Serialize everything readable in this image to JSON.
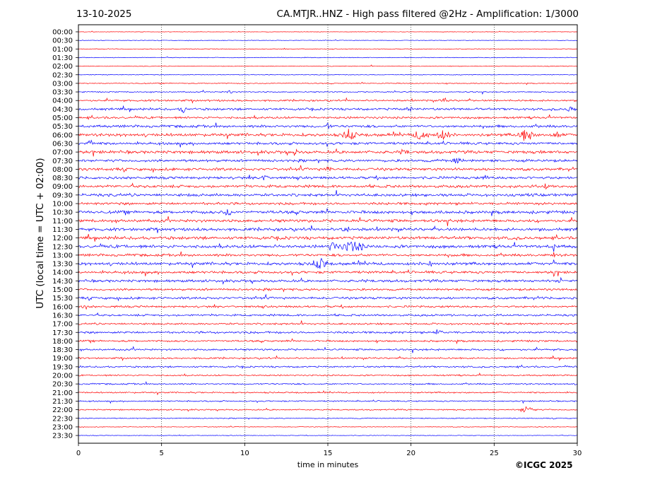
{
  "header": {
    "date": "13-10-2025",
    "title": "CA.MTJR..HNZ - High pass filtered @2Hz - Amplification: 1/3000"
  },
  "footer": {
    "copyright": "©ICGC 2025"
  },
  "colors": {
    "red": "#ff0000",
    "blue": "#0000ff",
    "grid": "#000000"
  },
  "chart_data": {
    "type": "line",
    "xlabel": "time in minutes",
    "ylabel": "UTC (local time = UTC + 02:00)",
    "xlim": [
      0,
      30
    ],
    "xticks": [
      0,
      5,
      10,
      15,
      20,
      25,
      30
    ],
    "xgrid": "dotted vertical lines at 5, 10, 15, 20, 25",
    "traces": [
      {
        "label": "00:00",
        "color": "red"
      },
      {
        "label": "00:30",
        "color": "blue"
      },
      {
        "label": "01:00",
        "color": "red"
      },
      {
        "label": "01:30",
        "color": "blue"
      },
      {
        "label": "02:00",
        "color": "red"
      },
      {
        "label": "02:30",
        "color": "blue"
      },
      {
        "label": "03:00",
        "color": "red"
      },
      {
        "label": "03:30",
        "color": "blue"
      },
      {
        "label": "04:00",
        "color": "red"
      },
      {
        "label": "04:30",
        "color": "blue"
      },
      {
        "label": "05:00",
        "color": "red"
      },
      {
        "label": "05:30",
        "color": "blue"
      },
      {
        "label": "06:00",
        "color": "red"
      },
      {
        "label": "06:30",
        "color": "blue"
      },
      {
        "label": "07:00",
        "color": "red"
      },
      {
        "label": "07:30",
        "color": "blue"
      },
      {
        "label": "08:00",
        "color": "red"
      },
      {
        "label": "08:30",
        "color": "blue"
      },
      {
        "label": "09:00",
        "color": "red"
      },
      {
        "label": "09:30",
        "color": "blue"
      },
      {
        "label": "10:00",
        "color": "red"
      },
      {
        "label": "10:30",
        "color": "blue"
      },
      {
        "label": "11:00",
        "color": "red"
      },
      {
        "label": "11:30",
        "color": "blue"
      },
      {
        "label": "12:00",
        "color": "red"
      },
      {
        "label": "12:30",
        "color": "blue"
      },
      {
        "label": "13:00",
        "color": "red"
      },
      {
        "label": "13:30",
        "color": "blue"
      },
      {
        "label": "14:00",
        "color": "red"
      },
      {
        "label": "14:30",
        "color": "blue"
      },
      {
        "label": "15:00",
        "color": "red"
      },
      {
        "label": "15:30",
        "color": "blue"
      },
      {
        "label": "16:00",
        "color": "red"
      },
      {
        "label": "16:30",
        "color": "blue"
      },
      {
        "label": "17:00",
        "color": "red"
      },
      {
        "label": "17:30",
        "color": "blue"
      },
      {
        "label": "18:00",
        "color": "red"
      },
      {
        "label": "18:30",
        "color": "blue"
      },
      {
        "label": "19:00",
        "color": "red"
      },
      {
        "label": "19:30",
        "color": "blue"
      },
      {
        "label": "20:00",
        "color": "red"
      },
      {
        "label": "20:30",
        "color": "blue"
      },
      {
        "label": "21:00",
        "color": "red"
      },
      {
        "label": "21:30",
        "color": "blue"
      },
      {
        "label": "22:00",
        "color": "red"
      },
      {
        "label": "22:30",
        "color": "blue"
      },
      {
        "label": "23:00",
        "color": "red"
      },
      {
        "label": "23:30",
        "color": "blue"
      }
    ],
    "noise_levels": [
      0.25,
      0.3,
      0.35,
      0.4,
      0.35,
      0.4,
      0.5,
      0.6,
      1.0,
      1.2,
      1.2,
      1.4,
      1.6,
      1.4,
      1.6,
      1.4,
      1.5,
      1.4,
      1.5,
      1.5,
      1.4,
      1.6,
      1.6,
      1.6,
      1.6,
      1.7,
      1.4,
      1.6,
      1.4,
      1.4,
      1.2,
      1.3,
      1.1,
      1.1,
      1.0,
      1.2,
      1.0,
      1.0,
      0.9,
      0.9,
      0.8,
      0.8,
      0.8,
      0.7,
      0.7,
      0.5,
      0.35,
      0.3
    ],
    "events": [
      {
        "trace": "03:30",
        "minute": 9.1,
        "amplitude": 3,
        "duration": 0.2
      },
      {
        "trace": "04:00",
        "minute": 22.0,
        "amplitude": 3,
        "duration": 0.3
      },
      {
        "trace": "04:30",
        "minute": 6.3,
        "amplitude": 4,
        "duration": 0.3
      },
      {
        "trace": "04:30",
        "minute": 19.9,
        "amplitude": 5,
        "duration": 0.2
      },
      {
        "trace": "04:30",
        "minute": 29.6,
        "amplitude": 4,
        "duration": 0.3
      },
      {
        "trace": "05:30",
        "minute": 15.0,
        "amplitude": 4,
        "duration": 0.2
      },
      {
        "trace": "06:00",
        "minute": 16.3,
        "amplitude": 8,
        "duration": 0.5
      },
      {
        "trace": "06:00",
        "minute": 20.6,
        "amplitude": 6,
        "duration": 0.6
      },
      {
        "trace": "06:00",
        "minute": 21.9,
        "amplitude": 6,
        "duration": 0.6
      },
      {
        "trace": "06:00",
        "minute": 26.9,
        "amplitude": 9,
        "duration": 0.6
      },
      {
        "trace": "06:00",
        "minute": 28.8,
        "amplitude": 5,
        "duration": 0.3
      },
      {
        "trace": "06:30",
        "minute": 0.7,
        "amplitude": 4,
        "duration": 0.3
      },
      {
        "trace": "07:00",
        "minute": 13.0,
        "amplitude": 4,
        "duration": 0.2
      },
      {
        "trace": "07:00",
        "minute": 19.6,
        "amplitude": 3,
        "duration": 0.3
      },
      {
        "trace": "07:30",
        "minute": 22.8,
        "amplitude": 4,
        "duration": 0.4
      },
      {
        "trace": "08:00",
        "minute": 15.0,
        "amplitude": 3,
        "duration": 0.3
      },
      {
        "trace": "08:30",
        "minute": 11.2,
        "amplitude": 5,
        "duration": 0.2
      },
      {
        "trace": "08:30",
        "minute": 24.5,
        "amplitude": 3,
        "duration": 0.2
      },
      {
        "trace": "09:00",
        "minute": 28.1,
        "amplitude": 4,
        "duration": 0.2
      },
      {
        "trace": "10:30",
        "minute": 9.0,
        "amplitude": 5,
        "duration": 0.3
      },
      {
        "trace": "11:30",
        "minute": 16.1,
        "amplitude": 4,
        "duration": 0.3
      },
      {
        "trace": "12:30",
        "minute": 15.3,
        "amplitude": 6,
        "duration": 0.4
      },
      {
        "trace": "12:30",
        "minute": 16.5,
        "amplitude": 7,
        "duration": 0.9
      },
      {
        "trace": "12:30",
        "minute": 28.6,
        "amplitude": 7,
        "duration": 0.1
      },
      {
        "trace": "13:00",
        "minute": 28.6,
        "amplitude": 7,
        "duration": 0.1
      },
      {
        "trace": "13:30",
        "minute": 14.5,
        "amplitude": 7,
        "duration": 0.6
      },
      {
        "trace": "13:30",
        "minute": 21.1,
        "amplitude": 6,
        "duration": 0.2
      },
      {
        "trace": "13:30",
        "minute": 28.6,
        "amplitude": 6,
        "duration": 0.1
      },
      {
        "trace": "14:00",
        "minute": 28.6,
        "amplitude": 6,
        "duration": 0.1
      },
      {
        "trace": "14:30",
        "minute": 29.0,
        "amplitude": 4,
        "duration": 0.2
      },
      {
        "trace": "16:00",
        "minute": 0.4,
        "amplitude": 4,
        "duration": 0.2
      },
      {
        "trace": "17:30",
        "minute": 21.6,
        "amplitude": 3,
        "duration": 0.4
      },
      {
        "trace": "22:00",
        "minute": 27.0,
        "amplitude": 5,
        "duration": 0.6
      }
    ]
  }
}
